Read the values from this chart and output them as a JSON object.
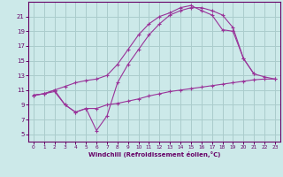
{
  "bg_color": "#cce9e9",
  "grid_color": "#aacccc",
  "line_color": "#993399",
  "marker": "+",
  "xlabel": "Windchill (Refroidissement éolien,°C)",
  "xlabel_color": "#660066",
  "tick_color": "#660066",
  "xlim": [
    -0.5,
    23.5
  ],
  "ylim": [
    4,
    23
  ],
  "yticks": [
    5,
    7,
    9,
    11,
    13,
    15,
    17,
    19,
    21
  ],
  "xticks": [
    0,
    1,
    2,
    3,
    4,
    5,
    6,
    7,
    8,
    9,
    10,
    11,
    12,
    13,
    14,
    15,
    16,
    17,
    18,
    19,
    20,
    21,
    22,
    23
  ],
  "line1_x": [
    0,
    1,
    2,
    3,
    4,
    5,
    6,
    7,
    8,
    9,
    10,
    11,
    12,
    13,
    14,
    15,
    16,
    17,
    18,
    19,
    20,
    21,
    22,
    23
  ],
  "line1_y": [
    10.3,
    10.5,
    10.8,
    9.0,
    8.0,
    8.5,
    8.5,
    9.0,
    9.2,
    9.5,
    9.8,
    10.2,
    10.5,
    10.8,
    11.0,
    11.2,
    11.4,
    11.6,
    11.8,
    12.0,
    12.2,
    12.4,
    12.5,
    12.5
  ],
  "line2_x": [
    0,
    1,
    2,
    3,
    4,
    5,
    6,
    7,
    8,
    9,
    10,
    11,
    12,
    13,
    14,
    15,
    16,
    17,
    18,
    19,
    20,
    21
  ],
  "line2_y": [
    10.3,
    10.5,
    11.0,
    9.0,
    8.0,
    8.5,
    5.5,
    7.5,
    12.0,
    14.5,
    16.5,
    18.5,
    20.0,
    21.2,
    21.8,
    22.2,
    22.2,
    21.8,
    21.2,
    19.5,
    15.3,
    13.2
  ],
  "line3_x": [
    0,
    1,
    2,
    3,
    4,
    5,
    6,
    7,
    8,
    9,
    10,
    11,
    12,
    13,
    14,
    15,
    16,
    17,
    18,
    19,
    20,
    21,
    22,
    23
  ],
  "line3_y": [
    10.3,
    10.5,
    11.0,
    11.5,
    12.0,
    12.3,
    12.5,
    13.0,
    14.5,
    16.5,
    18.5,
    20.0,
    21.0,
    21.5,
    22.2,
    22.5,
    21.8,
    21.2,
    19.2,
    19.0,
    15.3,
    13.2,
    12.8,
    12.5
  ]
}
